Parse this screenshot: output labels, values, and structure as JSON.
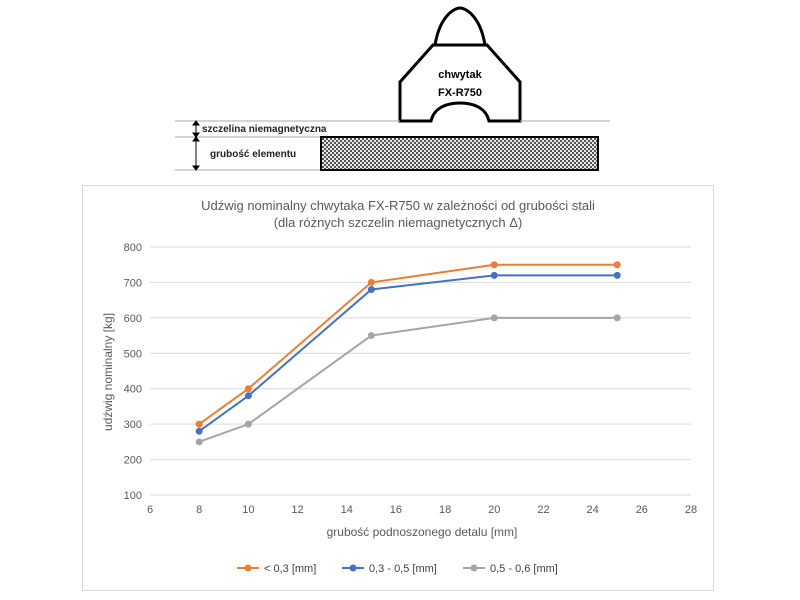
{
  "diagram": {
    "gripper_label_line1": "chwytak",
    "gripper_label_line2": "FX-R750",
    "gap_label": "szczelina niemagnetyczna",
    "thickness_label": "grubość elementu"
  },
  "chart_data": {
    "type": "line",
    "title": "Udźwig nominalny chwytaka FX-R750 w zależności od grubości stali",
    "subtitle": "(dla różnych szczelin niemagnetycznych Δ)",
    "xlabel": "grubość podnoszonego detalu [mm]",
    "ylabel": "udźwig nominalny [kg]",
    "xlim": [
      6,
      28
    ],
    "ylim": [
      100,
      800
    ],
    "xticks": [
      "6",
      "8",
      "10",
      "12",
      "14",
      "16",
      "18",
      "20",
      "22",
      "24",
      "26",
      "28"
    ],
    "yticks": [
      "100",
      "200",
      "300",
      "400",
      "500",
      "600",
      "700",
      "800"
    ],
    "grid": "horizontal",
    "legend": "bottom",
    "x": [
      8,
      10,
      15,
      20,
      25
    ],
    "series": [
      {
        "name": "< 0,3 [mm]",
        "color": "#ed7d31",
        "values": [
          300,
          400,
          700,
          750,
          750
        ]
      },
      {
        "name": "0,3 - 0,5 [mm]",
        "color": "#4472c4",
        "values": [
          280,
          380,
          680,
          720,
          720
        ]
      },
      {
        "name": "0,5 - 0,6 [mm]",
        "color": "#a5a5a5",
        "values": [
          250,
          300,
          550,
          600,
          600
        ]
      }
    ]
  }
}
